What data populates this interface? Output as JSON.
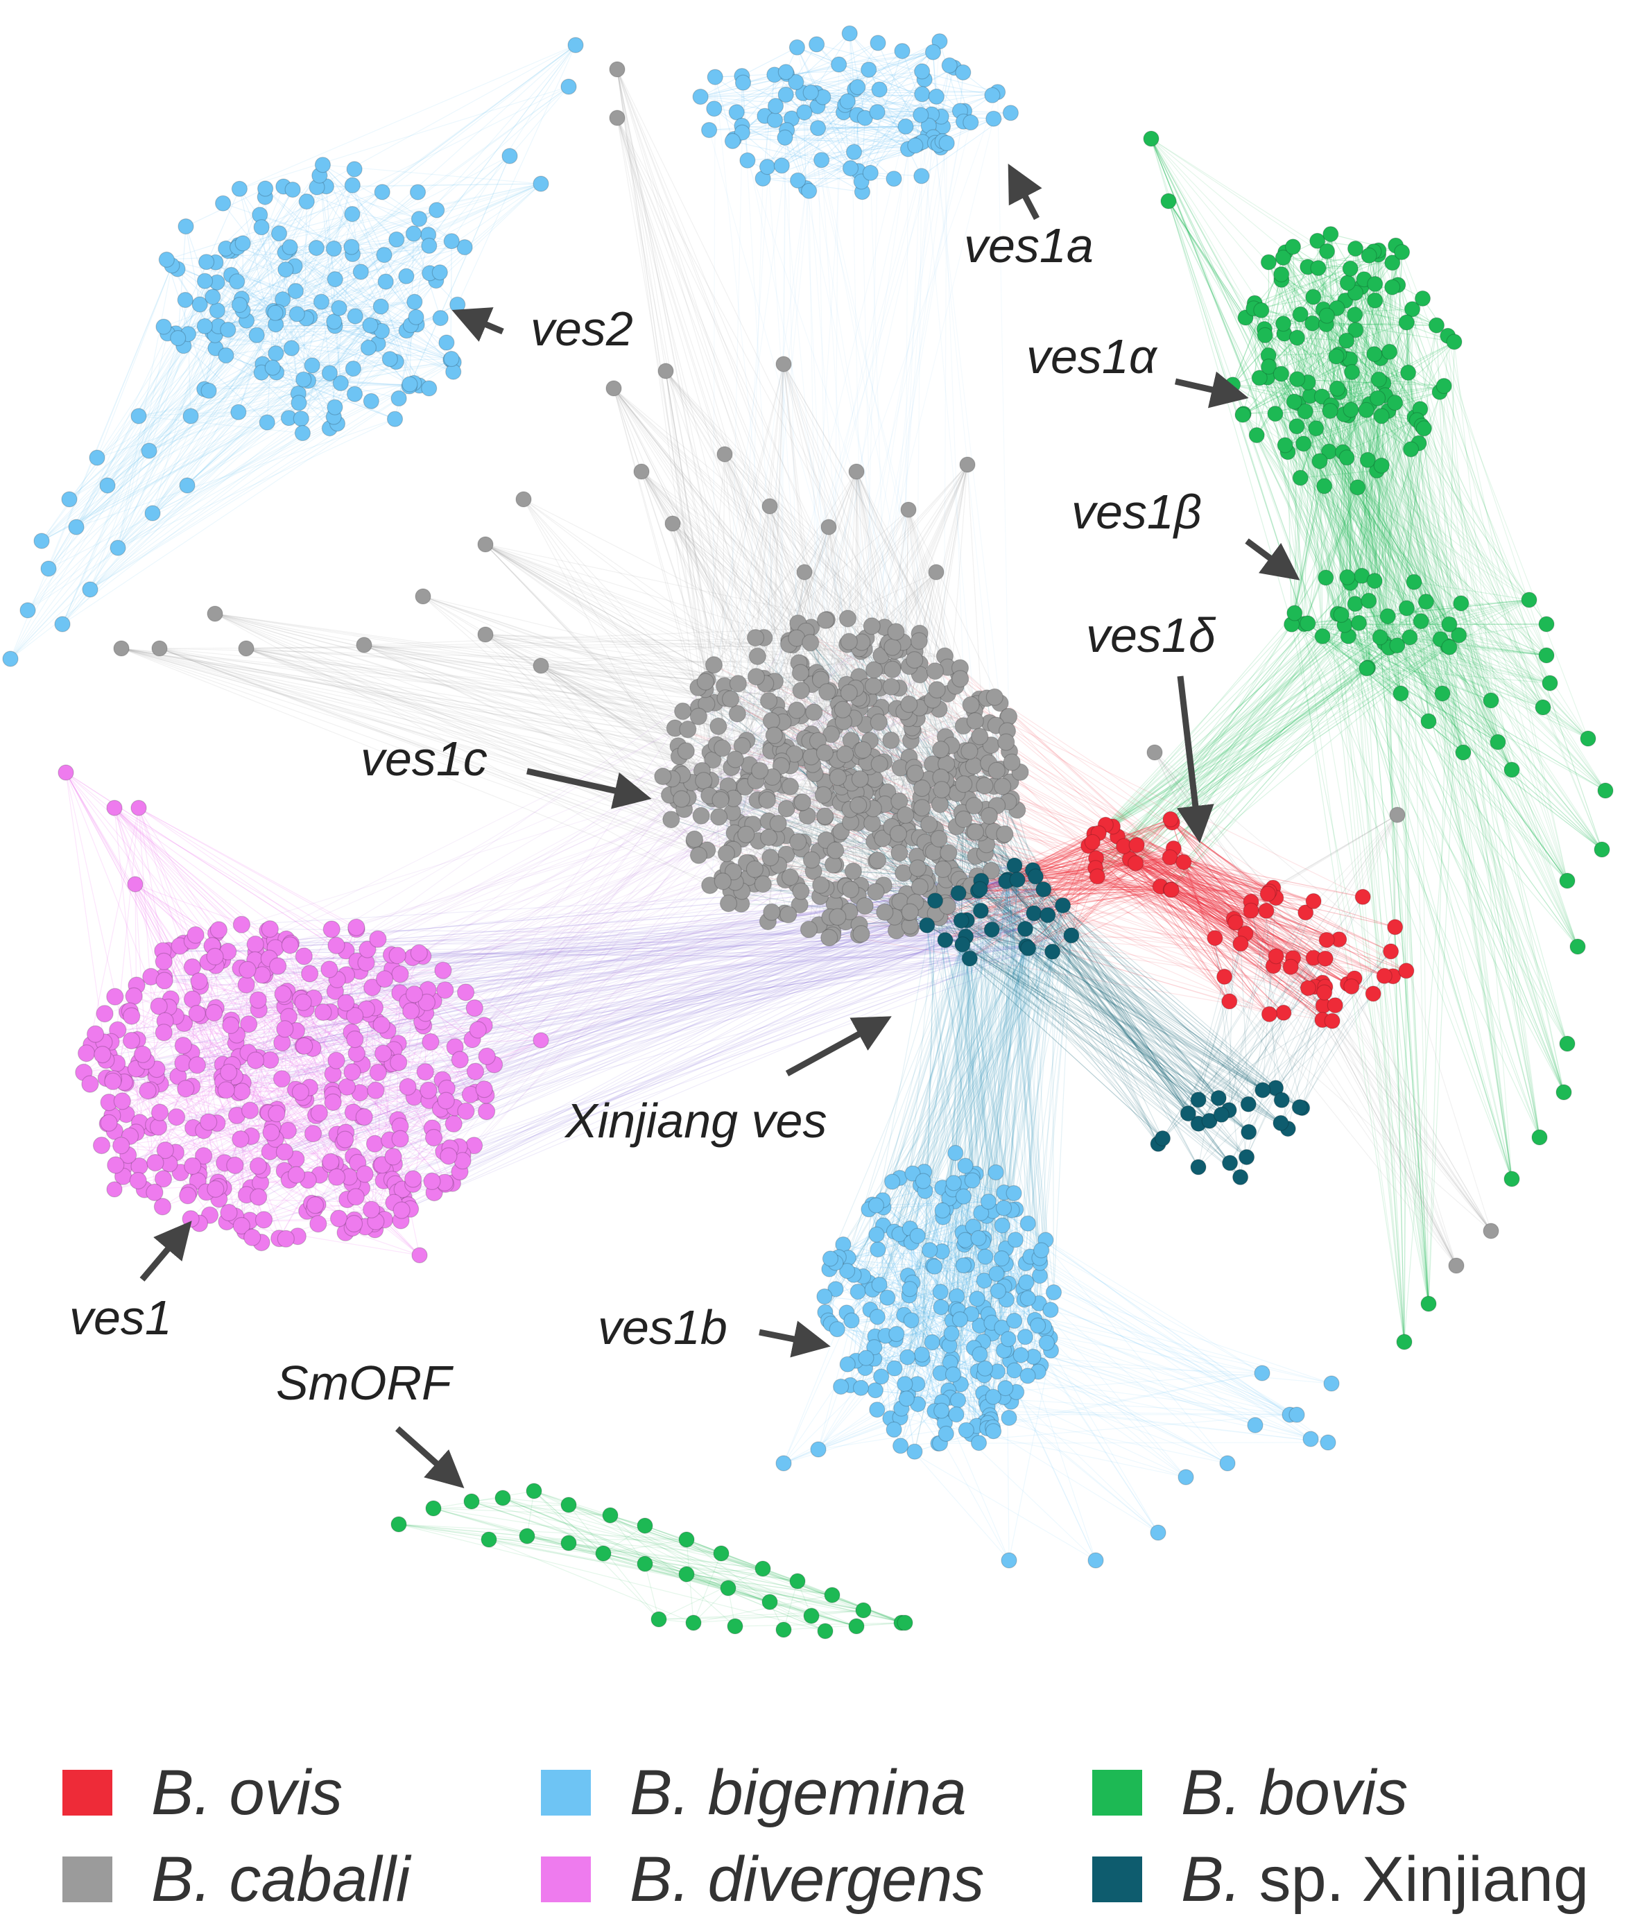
{
  "clusters": [
    {
      "key": "ves2",
      "label": "ves2",
      "color": "#6EC4F4"
    },
    {
      "key": "ves1a",
      "label": "ves1a",
      "color": "#6EC4F4"
    },
    {
      "key": "ves1alpha",
      "label": "ves1α",
      "color": "#1DB954"
    },
    {
      "key": "ves1beta",
      "label": "ves1β",
      "color": "#1DB954"
    },
    {
      "key": "ves1delta",
      "label": "ves1δ",
      "color": "#EE2B38"
    },
    {
      "key": "ves1c",
      "label": "ves1c",
      "color": "#9B9B9B"
    },
    {
      "key": "xinjiangves",
      "label": "Xinjiang ves",
      "color": "#0E5C6E"
    },
    {
      "key": "ves1",
      "label": "ves1",
      "color": "#EE7BEE"
    },
    {
      "key": "ves1b",
      "label": "ves1b",
      "color": "#6EC4F4"
    },
    {
      "key": "smorf",
      "label": "SmORF",
      "color": "#1DB954"
    }
  ],
  "legend": {
    "items": [
      {
        "genus": "B.",
        "species": "ovis",
        "color": "#EE2B38"
      },
      {
        "genus": "B.",
        "species": "bigemina",
        "color": "#6EC4F4"
      },
      {
        "genus": "B.",
        "species": "bovis",
        "color": "#1DB954"
      },
      {
        "genus": "B.",
        "species": "caballi",
        "color": "#9B9B9B"
      },
      {
        "genus": "B.",
        "species": "divergens",
        "color": "#EE7BEE"
      },
      {
        "genus": "B.",
        "species": "sp. Xinjiang",
        "color": "#0E5C6E"
      }
    ]
  }
}
